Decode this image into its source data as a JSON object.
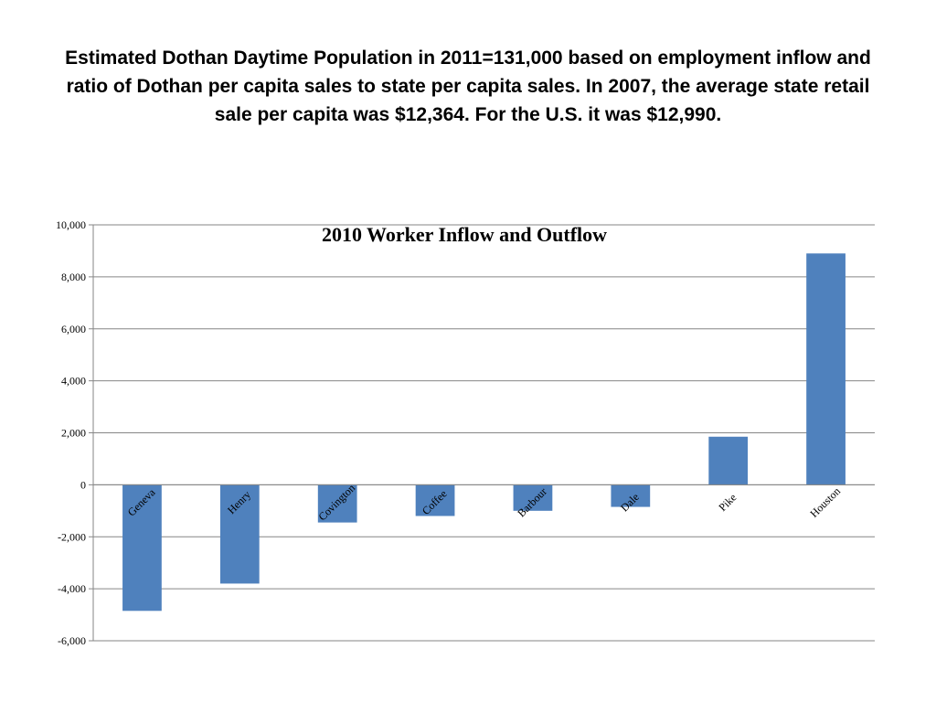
{
  "slide": {
    "title": "Estimated Dothan Daytime Population in 2011=131,000 based on employment inflow and ratio of Dothan per capita sales to state per capita sales. In 2007, the average state retail sale per capita was $12,364. For the U.S. it was $12,990."
  },
  "chart_data": {
    "type": "bar",
    "title": "2010 Worker Inflow and Outflow",
    "categories": [
      "Geneva",
      "Henry",
      "Covington",
      "Coffee",
      "Barbour",
      "Dale",
      "Pike",
      "Houston"
    ],
    "values": [
      -4850,
      -3800,
      -1450,
      -1200,
      -1000,
      -850,
      1850,
      8900
    ],
    "ylim": [
      -6000,
      10000
    ],
    "yticks": [
      "10,000",
      "8,000",
      "6,000",
      "4,000",
      "2,000",
      "0",
      "-2,000",
      "-4,000",
      "-6,000"
    ],
    "grid": true,
    "legend": "none",
    "bar_color": "#4F81BD",
    "grid_color": "#868686"
  }
}
